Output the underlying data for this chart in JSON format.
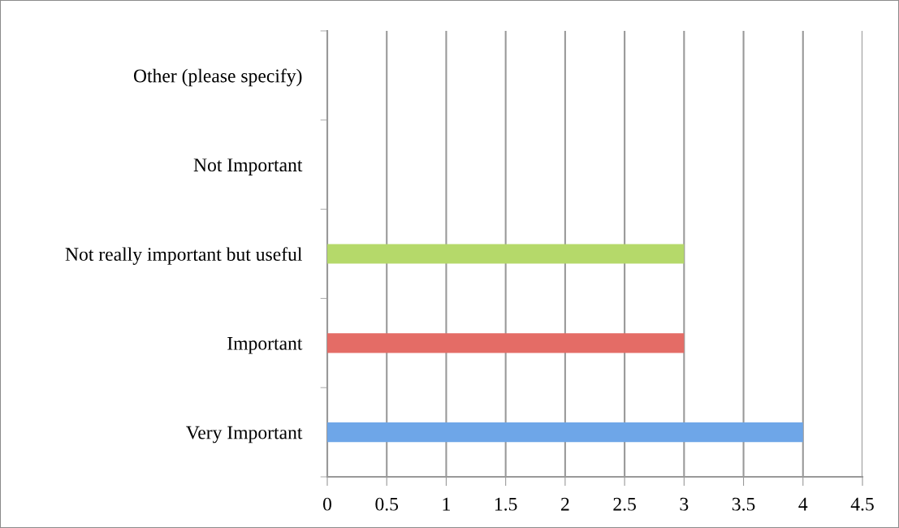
{
  "chart_data": {
    "type": "bar",
    "orientation": "horizontal",
    "categories": [
      "Other (please specify)",
      "Not Important",
      "Not really important but useful",
      "Important",
      "Very Important"
    ],
    "values": [
      0,
      0,
      3,
      3,
      4
    ],
    "colors": [
      "#4bacc6",
      "#8064a2",
      "#b5d96a",
      "#e46c66",
      "#6ea6e8"
    ],
    "xlim": [
      0,
      4.5
    ],
    "xticks": [
      0,
      0.5,
      1,
      1.5,
      2,
      2.5,
      3,
      3.5,
      4,
      4.5
    ],
    "grid": "x"
  }
}
